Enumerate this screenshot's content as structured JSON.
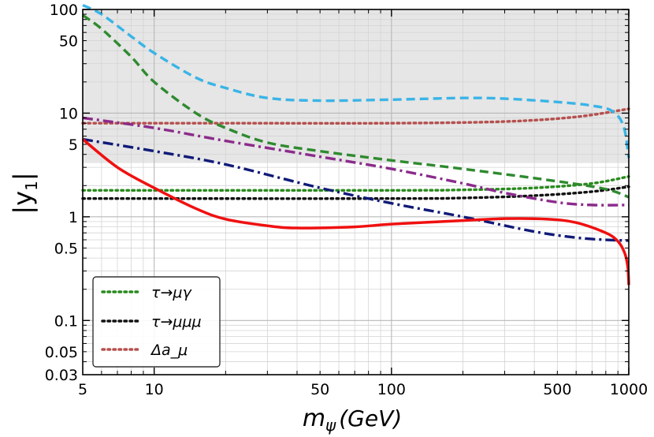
{
  "chart_data": {
    "type": "line",
    "title": "",
    "xlabel": "m_ψ (GeV)",
    "xlabel_main": "m",
    "xlabel_sub": "ψ",
    "xlabel_unit": "(GeV)",
    "ylabel": "|y1|",
    "ylabel_main": "|y",
    "ylabel_sub": "1",
    "ylabel_close": "|",
    "xscale": "log",
    "yscale": "log",
    "xlim": [
      5,
      1000
    ],
    "ylim": [
      0.03,
      100
    ],
    "grid": true,
    "legend_position": "bottom-left",
    "x_tick_labels": [
      "5",
      "10",
      "50",
      "100",
      "500",
      "1000"
    ],
    "y_tick_labels": [
      "0.03",
      "0.05",
      "0.1",
      "0.5",
      "1",
      "5",
      "10",
      "50",
      "100"
    ],
    "excluded_region": {
      "y_from": 3.3,
      "y_to": 100,
      "color": "#e6e6e6"
    },
    "series": [
      {
        "name": "τ→μγ",
        "in_legend": true,
        "color": "#2a8a1e",
        "style": "dotted",
        "points": [
          [
            5,
            1.8
          ],
          [
            100,
            1.8
          ],
          [
            200,
            1.82
          ],
          [
            400,
            1.9
          ],
          [
            700,
            2.1
          ],
          [
            1000,
            2.45
          ]
        ]
      },
      {
        "name": "τ→μμμ",
        "in_legend": true,
        "color": "#111111",
        "style": "dotted",
        "points": [
          [
            5,
            1.5
          ],
          [
            100,
            1.5
          ],
          [
            200,
            1.52
          ],
          [
            400,
            1.6
          ],
          [
            700,
            1.75
          ],
          [
            1000,
            1.95
          ]
        ]
      },
      {
        "name": "Δa_μ",
        "in_legend": true,
        "color": "#b5504e",
        "style": "dotted",
        "points": [
          [
            5,
            8
          ],
          [
            20,
            8
          ],
          [
            100,
            8
          ],
          [
            300,
            8.3
          ],
          [
            600,
            9.2
          ],
          [
            1000,
            11
          ]
        ]
      },
      {
        "name": "",
        "in_legend": false,
        "color": "#3ab4e6",
        "style": "dashed",
        "points": [
          [
            5,
            110
          ],
          [
            6,
            90
          ],
          [
            8,
            55
          ],
          [
            10,
            38
          ],
          [
            15,
            22
          ],
          [
            20,
            17.5
          ],
          [
            30,
            14
          ],
          [
            50,
            13.2
          ],
          [
            100,
            13.5
          ],
          [
            200,
            14
          ],
          [
            300,
            13.8
          ],
          [
            500,
            12.8
          ],
          [
            700,
            11.8
          ],
          [
            850,
            10.5
          ],
          [
            950,
            7.5
          ],
          [
            1000,
            3.7
          ]
        ]
      },
      {
        "name": "",
        "in_legend": false,
        "color": "#2f8a2f",
        "style": "dashed",
        "points": [
          [
            5,
            88
          ],
          [
            6,
            65
          ],
          [
            8,
            35
          ],
          [
            10,
            20
          ],
          [
            15,
            10
          ],
          [
            20,
            7.2
          ],
          [
            30,
            5.2
          ],
          [
            50,
            4.3
          ],
          [
            100,
            3.5
          ],
          [
            200,
            2.9
          ],
          [
            500,
            2.2
          ],
          [
            800,
            1.85
          ],
          [
            1000,
            1.55
          ]
        ]
      },
      {
        "name": "",
        "in_legend": false,
        "color": "#8b2b8b",
        "style": "dashdot",
        "points": [
          [
            5,
            9
          ],
          [
            10,
            7.2
          ],
          [
            20,
            5.4
          ],
          [
            50,
            3.8
          ],
          [
            100,
            2.9
          ],
          [
            200,
            2.1
          ],
          [
            300,
            1.7
          ],
          [
            500,
            1.38
          ],
          [
            700,
            1.3
          ],
          [
            1000,
            1.3
          ]
        ]
      },
      {
        "name": "",
        "in_legend": false,
        "color": "#101a78",
        "style": "dashdot",
        "points": [
          [
            5,
            5.6
          ],
          [
            10,
            4.3
          ],
          [
            20,
            3.2
          ],
          [
            50,
            1.9
          ],
          [
            100,
            1.35
          ],
          [
            200,
            1.0
          ],
          [
            400,
            0.72
          ],
          [
            600,
            0.63
          ],
          [
            800,
            0.6
          ],
          [
            1000,
            0.59
          ]
        ]
      },
      {
        "name": "",
        "in_legend": false,
        "color": "#f01010",
        "style": "solid",
        "points": [
          [
            5,
            5.6
          ],
          [
            7,
            3.0
          ],
          [
            10,
            1.9
          ],
          [
            15,
            1.2
          ],
          [
            20,
            0.95
          ],
          [
            30,
            0.82
          ],
          [
            40,
            0.78
          ],
          [
            70,
            0.8
          ],
          [
            100,
            0.85
          ],
          [
            200,
            0.92
          ],
          [
            300,
            0.96
          ],
          [
            450,
            0.95
          ],
          [
            600,
            0.88
          ],
          [
            800,
            0.7
          ],
          [
            900,
            0.58
          ],
          [
            960,
            0.45
          ],
          [
            990,
            0.33
          ],
          [
            1000,
            0.22
          ]
        ]
      }
    ]
  }
}
